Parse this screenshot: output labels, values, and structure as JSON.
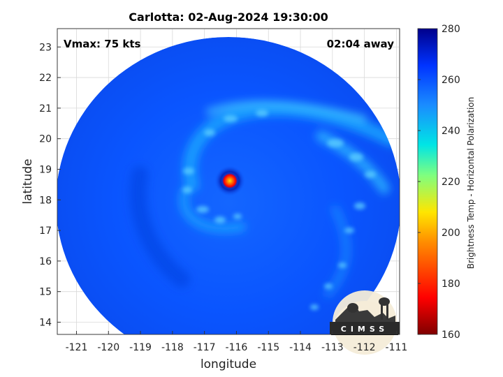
{
  "title": "Carlotta: 02-Aug-2024 19:30:00",
  "vmax_label": "Vmax: 75 kts",
  "away_label": "02:04 away",
  "xlabel": "longitude",
  "ylabel": "latitude",
  "colorbar_label": "Brightness Temp - Horizontal Polarization",
  "logo_text": "CIMSS",
  "x_ticks": [
    "-121",
    "-120",
    "-119",
    "-118",
    "-117",
    "-116",
    "-115",
    "-114",
    "-113",
    "-112",
    "-111"
  ],
  "y_ticks": [
    "23",
    "22",
    "21",
    "20",
    "19",
    "18",
    "17",
    "16",
    "15",
    "14"
  ],
  "colorbar_ticks": [
    "280",
    "260",
    "240",
    "220",
    "200",
    "180",
    "160"
  ],
  "map": {
    "lon_range": [
      -121.6,
      -110.9
    ],
    "lat_range": [
      13.6,
      23.6
    ],
    "swath_center": [
      -116.3,
      18.4
    ],
    "storm_eye": [
      -116.1,
      18.6
    ],
    "colorbar_range": [
      160,
      280
    ],
    "colorscale": [
      "#7f0000",
      "#ff0000",
      "#ffd000",
      "#00e0e0",
      "#1a8cff",
      "#0040ff",
      "#00008b"
    ]
  }
}
